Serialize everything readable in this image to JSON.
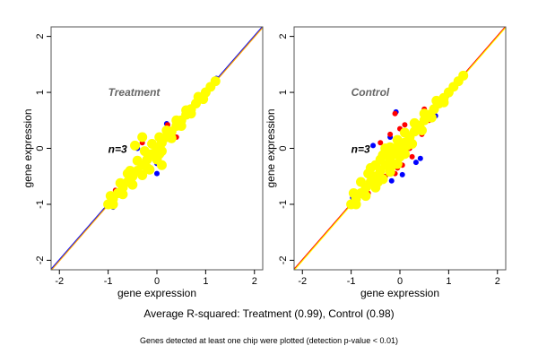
{
  "caption": "Average R-squared: Treatment (0.99), Control (0.98)",
  "footnote": "Genes detected at least one chip were plotted (detection p-value < 0.01)",
  "colors": {
    "yellow": "#ffff00",
    "red": "#ff0000",
    "blue": "#0000ff",
    "annotation_gray": "#666666"
  },
  "chart_data": [
    {
      "type": "scatter",
      "title": "",
      "xlabel": "gene expression",
      "ylabel": "gene expression",
      "xlim": [
        -2.17,
        2.17
      ],
      "ylim": [
        -2.17,
        2.17
      ],
      "xticks": [
        "-2",
        "-1",
        "0",
        "1",
        "2"
      ],
      "yticks": [
        "-2",
        "-1",
        "0",
        "1",
        "2"
      ],
      "grid": false,
      "annotations": {
        "group": "Treatment",
        "n": "n=3"
      },
      "reference_lines": [
        {
          "slope": 1,
          "intercept": 0,
          "colors": [
            "#0000ff",
            "#ffa500"
          ]
        }
      ],
      "series": [
        {
          "color": "#0000ff",
          "points": [
            [
              -0.3,
              0.17
            ],
            [
              0.2,
              0.44
            ],
            [
              0,
              -0.45
            ],
            [
              0,
              -0.27
            ],
            [
              -0.72,
              -0.62
            ],
            [
              -0.9,
              -1.05
            ],
            [
              -0.4,
              0.0
            ],
            [
              1.22,
              1.25
            ]
          ]
        },
        {
          "color": "#ff0000",
          "points": [
            [
              -0.3,
              0.1
            ],
            [
              0.22,
              0.42
            ],
            [
              0.4,
              0.2
            ],
            [
              -0.55,
              -0.4
            ],
            [
              -0.95,
              -0.9
            ],
            [
              -0.5,
              -0.65
            ],
            [
              -0.2,
              -0.05
            ],
            [
              -0.85,
              -0.75
            ]
          ]
        },
        {
          "color": "#ffff00",
          "points": [
            [
              -1,
              -1
            ],
            [
              -0.9,
              -0.9
            ],
            [
              -0.8,
              -0.8
            ],
            [
              -0.7,
              -0.7
            ],
            [
              -0.6,
              -0.6
            ],
            [
              -0.5,
              -0.5
            ],
            [
              -0.4,
              -0.4
            ],
            [
              -0.3,
              -0.3
            ],
            [
              -0.2,
              -0.2
            ],
            [
              -0.1,
              -0.1
            ],
            [
              0,
              0
            ],
            [
              0.1,
              0.1
            ],
            [
              0.2,
              0.2
            ],
            [
              0.3,
              0.3
            ],
            [
              0.4,
              0.4
            ],
            [
              0.5,
              0.5
            ],
            [
              0.6,
              0.6
            ],
            [
              0.7,
              0.7
            ],
            [
              0.8,
              0.8
            ],
            [
              0.9,
              0.9
            ],
            [
              1,
              1
            ],
            [
              1.1,
              1.1
            ],
            [
              1.2,
              1.2
            ],
            [
              -0.95,
              -0.85
            ],
            [
              -0.75,
              -0.62
            ],
            [
              -0.55,
              -0.4
            ],
            [
              -0.4,
              -0.22
            ],
            [
              -0.25,
              -0.05
            ],
            [
              -0.1,
              0.08
            ],
            [
              0.05,
              0.2
            ],
            [
              0.2,
              0.32
            ],
            [
              0.4,
              0.5
            ],
            [
              0.6,
              0.68
            ],
            [
              0.85,
              0.92
            ],
            [
              -0.9,
              -1.0
            ],
            [
              -0.7,
              -0.82
            ],
            [
              -0.5,
              -0.65
            ],
            [
              -0.3,
              -0.48
            ],
            [
              -0.15,
              -0.38
            ],
            [
              0,
              -0.2
            ],
            [
              0.1,
              -0.05
            ],
            [
              0.3,
              0.18
            ],
            [
              0.5,
              0.4
            ],
            [
              0.7,
              0.62
            ],
            [
              0.95,
              0.88
            ],
            [
              -0.45,
              0.05
            ],
            [
              0.1,
              -0.3
            ],
            [
              -0.3,
              0.2
            ],
            [
              -0.6,
              -0.45
            ],
            [
              -0.2,
              -0.35
            ],
            [
              0.05,
              -0.1
            ]
          ]
        }
      ]
    },
    {
      "type": "scatter",
      "title": "",
      "xlabel": "gene expression",
      "ylabel": "gene expression",
      "xlim": [
        -2.17,
        2.17
      ],
      "ylim": [
        -2.17,
        2.17
      ],
      "xticks": [
        "-2",
        "-1",
        "0",
        "1",
        "2"
      ],
      "yticks": [
        "-2",
        "-1",
        "0",
        "1",
        "2"
      ],
      "grid": false,
      "annotations": {
        "group": "Control",
        "n": "n=3"
      },
      "reference_lines": [
        {
          "slope": 1,
          "intercept": 0,
          "colors": [
            "#ff0000",
            "#ffff00"
          ]
        }
      ],
      "series": [
        {
          "color": "#0000ff",
          "points": [
            [
              -0.08,
              0.65
            ],
            [
              0.33,
              -0.25
            ],
            [
              0.42,
              -0.18
            ],
            [
              0.05,
              -0.47
            ],
            [
              -0.17,
              -0.58
            ],
            [
              0.73,
              0.58
            ],
            [
              -0.97,
              -0.88
            ],
            [
              -0.55,
              0.05
            ],
            [
              0.5,
              0.48
            ],
            [
              0.98,
              0.95
            ],
            [
              -0.2,
              0.2
            ]
          ]
        },
        {
          "color": "#ff0000",
          "points": [
            [
              -0.1,
              0.62
            ],
            [
              0.5,
              0.7
            ],
            [
              0.05,
              -0.3
            ],
            [
              -0.05,
              -0.35
            ],
            [
              0.25,
              -0.15
            ],
            [
              -0.3,
              -0.5
            ],
            [
              -0.55,
              -0.3
            ],
            [
              -0.2,
              0.25
            ],
            [
              -0.4,
              0.1
            ],
            [
              0.3,
              0.4
            ],
            [
              -0.1,
              -0.45
            ],
            [
              0.1,
              0.42
            ],
            [
              -0.65,
              -0.8
            ],
            [
              0.45,
              0.25
            ],
            [
              -0.8,
              -0.6
            ],
            [
              0.6,
              0.5
            ],
            [
              -0.95,
              -1.0
            ],
            [
              -0.35,
              -0.1
            ],
            [
              0.0,
              0.35
            ],
            [
              0.2,
              0.0
            ]
          ]
        },
        {
          "color": "#ffff00",
          "points": [
            [
              -1,
              -1
            ],
            [
              -0.9,
              -0.9
            ],
            [
              -0.8,
              -0.8
            ],
            [
              -0.7,
              -0.7
            ],
            [
              -0.6,
              -0.6
            ],
            [
              -0.5,
              -0.5
            ],
            [
              -0.4,
              -0.4
            ],
            [
              -0.3,
              -0.3
            ],
            [
              -0.2,
              -0.2
            ],
            [
              -0.1,
              -0.1
            ],
            [
              0,
              0
            ],
            [
              0.1,
              0.1
            ],
            [
              0.2,
              0.2
            ],
            [
              0.3,
              0.3
            ],
            [
              0.4,
              0.4
            ],
            [
              0.5,
              0.5
            ],
            [
              0.6,
              0.6
            ],
            [
              0.7,
              0.7
            ],
            [
              0.8,
              0.8
            ],
            [
              0.9,
              0.9
            ],
            [
              1,
              1
            ],
            [
              1.1,
              1.1
            ],
            [
              1.2,
              1.2
            ],
            [
              1.3,
              1.3
            ],
            [
              -0.95,
              -0.8
            ],
            [
              -0.8,
              -0.6
            ],
            [
              -0.65,
              -0.45
            ],
            [
              -0.5,
              -0.3
            ],
            [
              -0.35,
              -0.12
            ],
            [
              -0.2,
              0.02
            ],
            [
              -0.05,
              0.15
            ],
            [
              0.1,
              0.28
            ],
            [
              0.3,
              0.45
            ],
            [
              0.5,
              0.62
            ],
            [
              0.75,
              0.85
            ],
            [
              -0.9,
              -1.0
            ],
            [
              -0.7,
              -0.85
            ],
            [
              -0.5,
              -0.7
            ],
            [
              -0.35,
              -0.55
            ],
            [
              -0.2,
              -0.42
            ],
            [
              -0.05,
              -0.28
            ],
            [
              0.1,
              -0.1
            ],
            [
              0.25,
              0.08
            ],
            [
              0.45,
              0.32
            ],
            [
              0.65,
              0.55
            ],
            [
              0.9,
              0.82
            ],
            [
              -0.6,
              -0.35
            ],
            [
              -0.4,
              -0.2
            ],
            [
              -0.25,
              -0.1
            ],
            [
              -0.1,
              0.0
            ],
            [
              0.0,
              -0.15
            ],
            [
              -0.15,
              -0.3
            ],
            [
              -0.45,
              -0.6
            ],
            [
              0.15,
              0.05
            ],
            [
              -0.3,
              0.0
            ]
          ]
        }
      ]
    }
  ]
}
